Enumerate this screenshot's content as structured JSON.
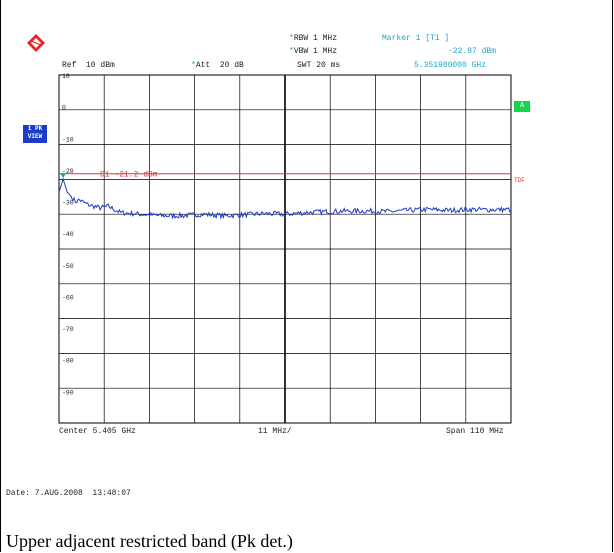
{
  "caption": "Upper adjacent restricted band (Pk det.)",
  "header": {
    "ref_label": "Ref  10 dBm",
    "att_label": "Att  20 dB",
    "rbw_label": "RBW 1 MHz",
    "vbw_label": "VBW 1 MHz",
    "swt_label": "SWT 20 ms",
    "marker_label": "Marker 1 [T1 ]",
    "marker_level": "-22.87 dBm",
    "marker_freq": "5.351980000 GHz",
    "star": "*"
  },
  "side": {
    "view_box_line1": "1 PK",
    "view_box_line2": "VIEW",
    "a_box": "A",
    "tdf": "TDF"
  },
  "display_line": {
    "label": "D1  -21.2 dBm",
    "level_dbm": -21.2
  },
  "footer": {
    "center": "Center 5.405 GHz",
    "div": "11 MHz/",
    "span": "Span 110 MHz",
    "date": "Date: 7.AUG.2008  13:48:07"
  },
  "colors": {
    "trace": "#1a3cc8",
    "display_line": "#d23c3c",
    "grid": "#000000",
    "text_cyan": "#1aa7c8",
    "a_box": "#18d44a",
    "logo": "#e8232a"
  },
  "chart_data": {
    "type": "line",
    "y_tick_labels": [
      "10",
      "0",
      "-10",
      "-20",
      "-30",
      "-40",
      "-50",
      "-60",
      "-70",
      "-80",
      "-90"
    ],
    "ylim": [
      -100,
      10
    ],
    "x_center_ghz": 5.405,
    "x_span_mhz": 110,
    "x_div_mhz": 11,
    "series": [
      {
        "x_mhz": [
          5350,
          5350.5,
          5351,
          5352,
          5353,
          5354,
          5355,
          5357,
          5360,
          5362,
          5365,
          5370,
          5375,
          5380,
          5385,
          5390,
          5395,
          5400,
          5405,
          5410,
          5415,
          5420,
          5425,
          5430,
          5435,
          5440,
          5445,
          5450,
          5455,
          5460
        ],
        "values": [
          -27,
          -25,
          -22.9,
          -27,
          -28.5,
          -30,
          -29.5,
          -31,
          -32,
          -31.5,
          -33.5,
          -34,
          -34.5,
          -34.5,
          -34,
          -34.5,
          -34.2,
          -33.8,
          -34,
          -33.5,
          -33.2,
          -33,
          -33,
          -33.2,
          -32.8,
          -32.5,
          -32.8,
          -32.5,
          -32.6,
          -32.5
        ]
      }
    ]
  }
}
